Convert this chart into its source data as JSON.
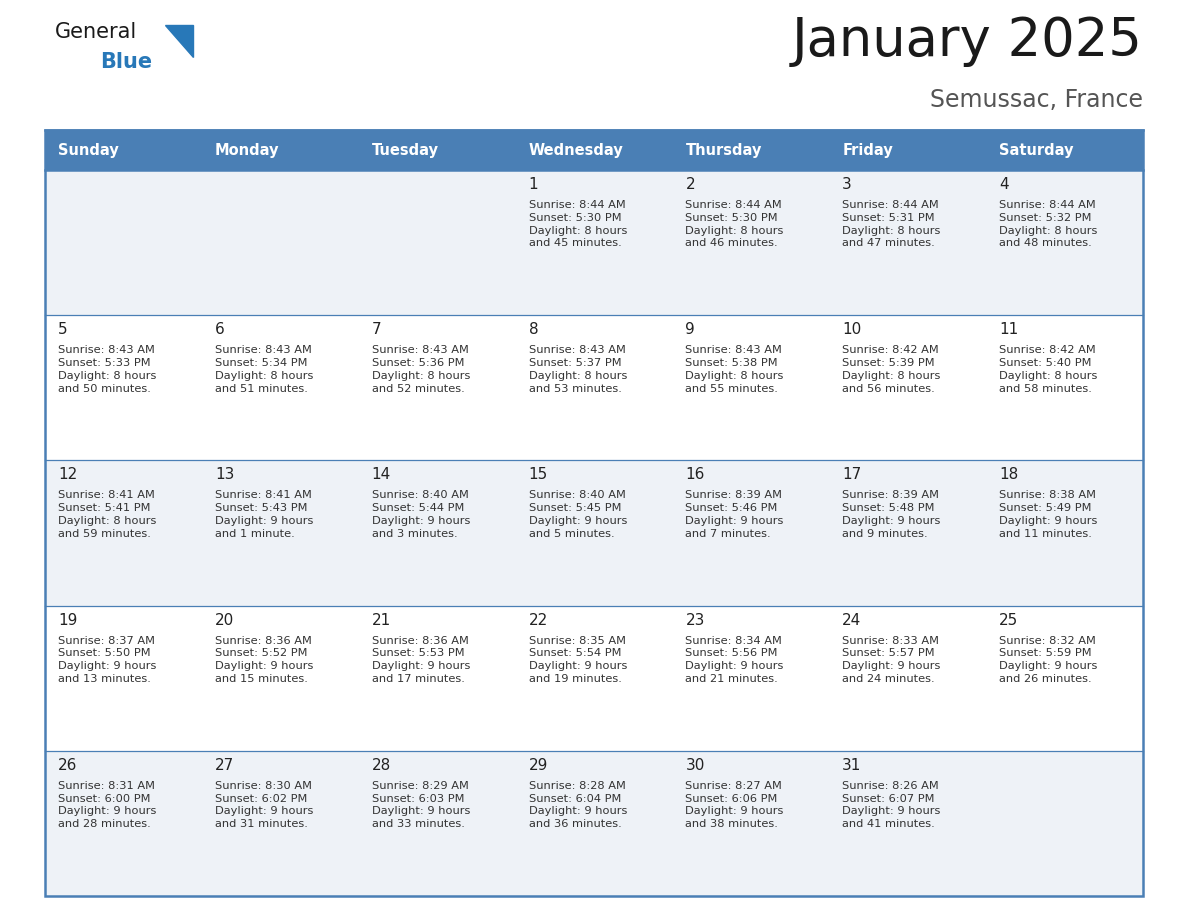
{
  "title": "January 2025",
  "subtitle": "Semussac, France",
  "header_bg": "#4a7fb5",
  "header_text": "#ffffff",
  "row_bg_odd": "#eef2f7",
  "row_bg_even": "#ffffff",
  "border_color": "#4a7fb5",
  "separator_color": "#4a7fb5",
  "day_names": [
    "Sunday",
    "Monday",
    "Tuesday",
    "Wednesday",
    "Thursday",
    "Friday",
    "Saturday"
  ],
  "title_color": "#1a1a1a",
  "subtitle_color": "#555555",
  "day_number_color": "#222222",
  "cell_text_color": "#333333",
  "logo_general_color": "#1a1a1a",
  "logo_blue_color": "#2878b8",
  "calendar": [
    [
      {
        "day": "",
        "sunrise": "",
        "sunset": "",
        "daylight": ""
      },
      {
        "day": "",
        "sunrise": "",
        "sunset": "",
        "daylight": ""
      },
      {
        "day": "",
        "sunrise": "",
        "sunset": "",
        "daylight": ""
      },
      {
        "day": "1",
        "sunrise": "8:44 AM",
        "sunset": "5:30 PM",
        "daylight": "8 hours\nand 45 minutes."
      },
      {
        "day": "2",
        "sunrise": "8:44 AM",
        "sunset": "5:30 PM",
        "daylight": "8 hours\nand 46 minutes."
      },
      {
        "day": "3",
        "sunrise": "8:44 AM",
        "sunset": "5:31 PM",
        "daylight": "8 hours\nand 47 minutes."
      },
      {
        "day": "4",
        "sunrise": "8:44 AM",
        "sunset": "5:32 PM",
        "daylight": "8 hours\nand 48 minutes."
      }
    ],
    [
      {
        "day": "5",
        "sunrise": "8:43 AM",
        "sunset": "5:33 PM",
        "daylight": "8 hours\nand 50 minutes."
      },
      {
        "day": "6",
        "sunrise": "8:43 AM",
        "sunset": "5:34 PM",
        "daylight": "8 hours\nand 51 minutes."
      },
      {
        "day": "7",
        "sunrise": "8:43 AM",
        "sunset": "5:36 PM",
        "daylight": "8 hours\nand 52 minutes."
      },
      {
        "day": "8",
        "sunrise": "8:43 AM",
        "sunset": "5:37 PM",
        "daylight": "8 hours\nand 53 minutes."
      },
      {
        "day": "9",
        "sunrise": "8:43 AM",
        "sunset": "5:38 PM",
        "daylight": "8 hours\nand 55 minutes."
      },
      {
        "day": "10",
        "sunrise": "8:42 AM",
        "sunset": "5:39 PM",
        "daylight": "8 hours\nand 56 minutes."
      },
      {
        "day": "11",
        "sunrise": "8:42 AM",
        "sunset": "5:40 PM",
        "daylight": "8 hours\nand 58 minutes."
      }
    ],
    [
      {
        "day": "12",
        "sunrise": "8:41 AM",
        "sunset": "5:41 PM",
        "daylight": "8 hours\nand 59 minutes."
      },
      {
        "day": "13",
        "sunrise": "8:41 AM",
        "sunset": "5:43 PM",
        "daylight": "9 hours\nand 1 minute."
      },
      {
        "day": "14",
        "sunrise": "8:40 AM",
        "sunset": "5:44 PM",
        "daylight": "9 hours\nand 3 minutes."
      },
      {
        "day": "15",
        "sunrise": "8:40 AM",
        "sunset": "5:45 PM",
        "daylight": "9 hours\nand 5 minutes."
      },
      {
        "day": "16",
        "sunrise": "8:39 AM",
        "sunset": "5:46 PM",
        "daylight": "9 hours\nand 7 minutes."
      },
      {
        "day": "17",
        "sunrise": "8:39 AM",
        "sunset": "5:48 PM",
        "daylight": "9 hours\nand 9 minutes."
      },
      {
        "day": "18",
        "sunrise": "8:38 AM",
        "sunset": "5:49 PM",
        "daylight": "9 hours\nand 11 minutes."
      }
    ],
    [
      {
        "day": "19",
        "sunrise": "8:37 AM",
        "sunset": "5:50 PM",
        "daylight": "9 hours\nand 13 minutes."
      },
      {
        "day": "20",
        "sunrise": "8:36 AM",
        "sunset": "5:52 PM",
        "daylight": "9 hours\nand 15 minutes."
      },
      {
        "day": "21",
        "sunrise": "8:36 AM",
        "sunset": "5:53 PM",
        "daylight": "9 hours\nand 17 minutes."
      },
      {
        "day": "22",
        "sunrise": "8:35 AM",
        "sunset": "5:54 PM",
        "daylight": "9 hours\nand 19 minutes."
      },
      {
        "day": "23",
        "sunrise": "8:34 AM",
        "sunset": "5:56 PM",
        "daylight": "9 hours\nand 21 minutes."
      },
      {
        "day": "24",
        "sunrise": "8:33 AM",
        "sunset": "5:57 PM",
        "daylight": "9 hours\nand 24 minutes."
      },
      {
        "day": "25",
        "sunrise": "8:32 AM",
        "sunset": "5:59 PM",
        "daylight": "9 hours\nand 26 minutes."
      }
    ],
    [
      {
        "day": "26",
        "sunrise": "8:31 AM",
        "sunset": "6:00 PM",
        "daylight": "9 hours\nand 28 minutes."
      },
      {
        "day": "27",
        "sunrise": "8:30 AM",
        "sunset": "6:02 PM",
        "daylight": "9 hours\nand 31 minutes."
      },
      {
        "day": "28",
        "sunrise": "8:29 AM",
        "sunset": "6:03 PM",
        "daylight": "9 hours\nand 33 minutes."
      },
      {
        "day": "29",
        "sunrise": "8:28 AM",
        "sunset": "6:04 PM",
        "daylight": "9 hours\nand 36 minutes."
      },
      {
        "day": "30",
        "sunrise": "8:27 AM",
        "sunset": "6:06 PM",
        "daylight": "9 hours\nand 38 minutes."
      },
      {
        "day": "31",
        "sunrise": "8:26 AM",
        "sunset": "6:07 PM",
        "daylight": "9 hours\nand 41 minutes."
      },
      {
        "day": "",
        "sunrise": "",
        "sunset": "",
        "daylight": ""
      }
    ]
  ]
}
